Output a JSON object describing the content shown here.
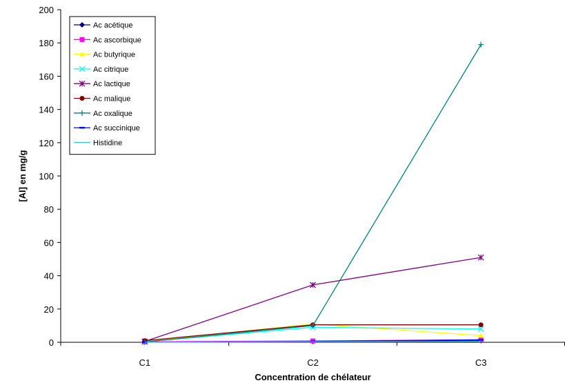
{
  "chart_data": {
    "type": "line",
    "title": "",
    "xlabel": "Concentration de chélateur",
    "ylabel": "[Al] en mg/g",
    "categories": [
      "C1",
      "C2",
      "C3"
    ],
    "ylim": [
      0,
      200
    ],
    "yticks": [
      0,
      20,
      40,
      60,
      80,
      100,
      120,
      140,
      160,
      180,
      200
    ],
    "grid": false,
    "legend_position": "top-left",
    "series": [
      {
        "name": "Ac acétique",
        "values": [
          0.2,
          0.5,
          1.0
        ],
        "color": "#000080",
        "marker": "diamond"
      },
      {
        "name": "Ac ascorbique",
        "values": [
          0.3,
          0.8,
          1.5
        ],
        "color": "#FF00FF",
        "marker": "square"
      },
      {
        "name": "Ac butyrique",
        "values": [
          0.5,
          11.0,
          4.0
        ],
        "color": "#FFFF00",
        "marker": "triangle"
      },
      {
        "name": "Ac citrique",
        "values": [
          0.3,
          9.0,
          8.0
        ],
        "color": "#00FFFF",
        "marker": "x"
      },
      {
        "name": "Ac lactique",
        "values": [
          0.5,
          34.5,
          51.0
        ],
        "color": "#800080",
        "marker": "star"
      },
      {
        "name": "Ac malique",
        "values": [
          1.0,
          10.5,
          10.5
        ],
        "color": "#800000",
        "marker": "circle"
      },
      {
        "name": "Ac oxalique",
        "values": [
          0.2,
          10.0,
          179.0
        ],
        "color": "#008080",
        "marker": "plus"
      },
      {
        "name": "Ac succinique",
        "values": [
          0.1,
          0.5,
          1.5
        ],
        "color": "#0000FF",
        "marker": "dash"
      },
      {
        "name": "Histidine",
        "values": [
          0.1,
          0.3,
          0.5
        ],
        "color": "#33CCCC",
        "marker": "none"
      }
    ]
  }
}
